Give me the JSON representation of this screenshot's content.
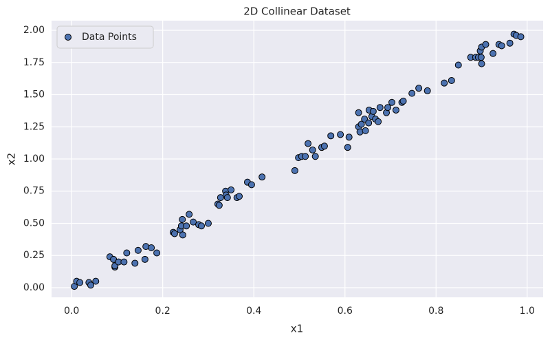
{
  "chart_data": {
    "type": "scatter",
    "title": "2D Collinear Dataset",
    "x_label": "x1",
    "y_label": "x2",
    "series": [
      {
        "name": "Data Points",
        "color": "#4c72b0",
        "x": [
          0.006,
          0.011,
          0.018,
          0.038,
          0.042,
          0.053,
          0.084,
          0.092,
          0.095,
          0.095,
          0.103,
          0.115,
          0.121,
          0.139,
          0.146,
          0.161,
          0.163,
          0.175,
          0.187,
          0.223,
          0.226,
          0.238,
          0.241,
          0.243,
          0.244,
          0.252,
          0.258,
          0.267,
          0.279,
          0.285,
          0.3,
          0.321,
          0.324,
          0.327,
          0.338,
          0.339,
          0.342,
          0.35,
          0.363,
          0.368,
          0.386,
          0.395,
          0.418,
          0.49,
          0.498,
          0.505,
          0.513,
          0.519,
          0.529,
          0.535,
          0.549,
          0.555,
          0.569,
          0.59,
          0.606,
          0.609,
          0.63,
          0.63,
          0.633,
          0.636,
          0.643,
          0.645,
          0.652,
          0.653,
          0.659,
          0.662,
          0.667,
          0.673,
          0.677,
          0.691,
          0.694,
          0.703,
          0.712,
          0.725,
          0.728,
          0.747,
          0.762,
          0.781,
          0.818,
          0.834,
          0.849,
          0.876,
          0.887,
          0.893,
          0.899,
          0.897,
          0.9,
          0.9,
          0.909,
          0.925,
          0.938,
          0.944,
          0.962,
          0.971,
          0.976,
          0.986
        ],
        "y": [
          0.01,
          0.05,
          0.04,
          0.04,
          0.02,
          0.05,
          0.24,
          0.22,
          0.16,
          0.17,
          0.2,
          0.2,
          0.27,
          0.19,
          0.29,
          0.22,
          0.32,
          0.31,
          0.27,
          0.43,
          0.42,
          0.45,
          0.48,
          0.53,
          0.41,
          0.48,
          0.57,
          0.51,
          0.49,
          0.48,
          0.5,
          0.65,
          0.64,
          0.7,
          0.75,
          0.72,
          0.7,
          0.76,
          0.7,
          0.71,
          0.82,
          0.8,
          0.86,
          0.91,
          1.01,
          1.02,
          1.02,
          1.12,
          1.07,
          1.02,
          1.09,
          1.1,
          1.18,
          1.19,
          1.09,
          1.17,
          1.36,
          1.25,
          1.21,
          1.27,
          1.31,
          1.22,
          1.28,
          1.38,
          1.33,
          1.37,
          1.31,
          1.29,
          1.4,
          1.36,
          1.4,
          1.44,
          1.38,
          1.44,
          1.45,
          1.51,
          1.55,
          1.53,
          1.59,
          1.61,
          1.73,
          1.79,
          1.79,
          1.79,
          1.79,
          1.84,
          1.87,
          1.74,
          1.89,
          1.82,
          1.89,
          1.88,
          1.9,
          1.97,
          1.96,
          1.95
        ]
      }
    ],
    "xlim": [
      -0.044,
      1.035
    ],
    "ylim": [
      -0.075,
      2.075
    ],
    "xticks": [
      {
        "value": 0,
        "label": "0.0"
      },
      0.2,
      0.4,
      0.6,
      0.8,
      {
        "value": 1,
        "label": "1.0"
      }
    ],
    "yticks": [
      {
        "value": 0,
        "label": "0.00"
      },
      0.25,
      {
        "value": 0.5,
        "label": "0.50"
      },
      0.75,
      {
        "value": 1,
        "label": "1.00"
      },
      1.25,
      {
        "value": 1.5,
        "label": "1.50"
      },
      1.75,
      {
        "value": 2,
        "label": "2.00"
      }
    ],
    "grid": true,
    "legend": "upper left"
  }
}
